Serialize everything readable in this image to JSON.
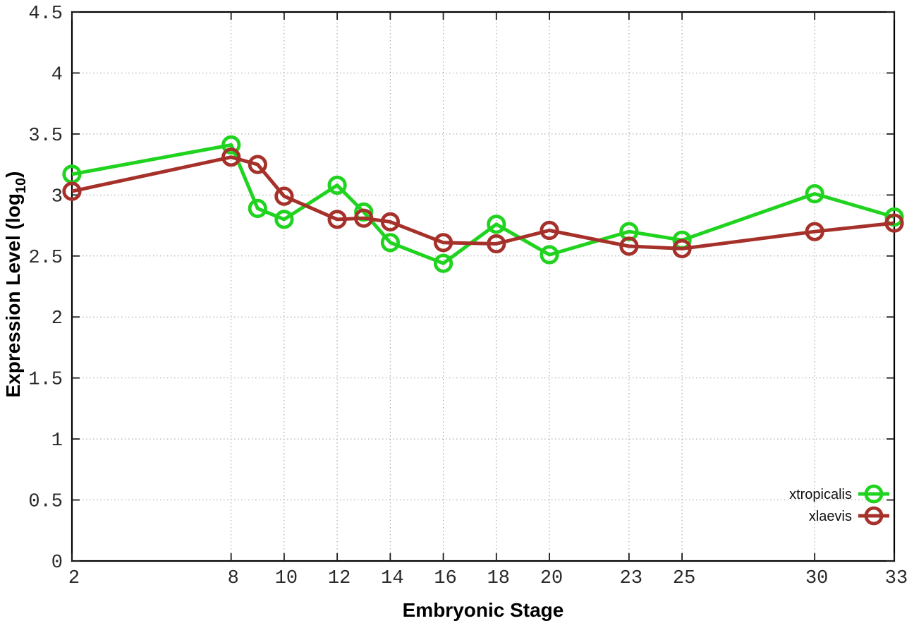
{
  "page": {
    "background": "#ffffff"
  },
  "chart_data": {
    "type": "line",
    "title": "",
    "xlabel": "Embryonic Stage",
    "ylabel": "Expression Level (log10)",
    "ylabel_parts": {
      "main": "Expression Level (log",
      "sub": "10",
      "end": ")"
    },
    "xlim": [
      2,
      33
    ],
    "ylim": [
      0,
      4.5
    ],
    "xticks": [
      2,
      8,
      10,
      12,
      14,
      16,
      18,
      20,
      23,
      25,
      30,
      33
    ],
    "yticks": [
      0,
      0.5,
      1,
      1.5,
      2,
      2.5,
      3,
      3.5,
      4,
      4.5
    ],
    "ytick_labels": [
      "0",
      "0.5",
      "1",
      "1.5",
      "2",
      "2.5",
      "3",
      "3.5",
      "4",
      "4.5"
    ],
    "grid": true,
    "legend_position": "bottom-right",
    "marker_style": "open-circle",
    "x": [
      2,
      8,
      9,
      10,
      12,
      13,
      14,
      16,
      18,
      20,
      23,
      25,
      30,
      33
    ],
    "series": [
      {
        "name": "xtropicalis",
        "color": "#1fd31f",
        "values": [
          3.17,
          3.41,
          2.89,
          2.8,
          3.08,
          2.86,
          2.61,
          2.44,
          2.76,
          2.51,
          2.7,
          2.63,
          3.01,
          2.82
        ]
      },
      {
        "name": "xlaevis",
        "color": "#a5312a",
        "values": [
          3.03,
          3.31,
          3.25,
          2.99,
          2.8,
          2.81,
          2.78,
          2.61,
          2.6,
          2.71,
          2.58,
          2.56,
          2.7,
          2.77
        ]
      }
    ]
  }
}
